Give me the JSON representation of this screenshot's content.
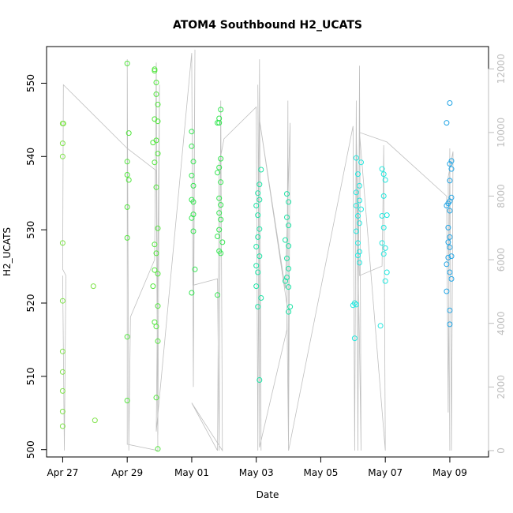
{
  "chart_data": {
    "type": "scatter",
    "title": "ATOM4 Southbound H2_UCATS",
    "xlabel": "Date",
    "ylabel": "H2_UCATS",
    "x_ticks": [
      "Apr 27",
      "Apr 29",
      "May 01",
      "May 03",
      "May 05",
      "May 07",
      "May 09"
    ],
    "x_tick_days": [
      0,
      2,
      4,
      6,
      8,
      10,
      12
    ],
    "xlim_days": [
      -0.5,
      13.2
    ],
    "ylim": [
      499,
      555
    ],
    "y_ticks": [
      500,
      510,
      520,
      530,
      540,
      550
    ],
    "y2_ticks": [
      0,
      2000,
      4000,
      6000,
      8000,
      10000,
      12000
    ],
    "y2lim": [
      -200,
      12700
    ],
    "secondary_series_color": "#bfbfbf",
    "series": [
      {
        "color": "#7fe34a",
        "points": [
          [
            0.0,
            544.5
          ],
          [
            0.02,
            544.5
          ],
          [
            0.0,
            541.8
          ],
          [
            0.0,
            540.0
          ],
          [
            0.0,
            528.2
          ],
          [
            0.0,
            520.3
          ],
          [
            0.0,
            513.4
          ],
          [
            0.0,
            510.6
          ],
          [
            0.0,
            508.0
          ],
          [
            0.0,
            505.2
          ],
          [
            0.0,
            503.2
          ],
          [
            0.95,
            522.3
          ],
          [
            1.0,
            504.0
          ]
        ]
      },
      {
        "color": "#52e63d",
        "points": [
          [
            2.0,
            552.7
          ],
          [
            2.05,
            543.2
          ],
          [
            2.0,
            539.3
          ],
          [
            2.0,
            537.5
          ],
          [
            2.05,
            536.8
          ],
          [
            2.0,
            533.1
          ],
          [
            2.0,
            528.9
          ],
          [
            2.0,
            515.4
          ],
          [
            2.0,
            506.7
          ],
          [
            2.85,
            551.7
          ],
          [
            2.85,
            551.9
          ],
          [
            2.9,
            550.1
          ],
          [
            2.9,
            548.5
          ],
          [
            2.95,
            547.1
          ],
          [
            2.85,
            545.1
          ],
          [
            2.95,
            544.8
          ],
          [
            2.9,
            542.2
          ],
          [
            2.8,
            541.9
          ],
          [
            2.95,
            540.4
          ],
          [
            2.85,
            539.2
          ],
          [
            2.9,
            535.8
          ],
          [
            2.95,
            530.2
          ],
          [
            2.85,
            528.0
          ],
          [
            2.9,
            526.8
          ],
          [
            2.85,
            524.5
          ],
          [
            2.95,
            524.0
          ],
          [
            2.8,
            522.3
          ],
          [
            2.95,
            519.6
          ],
          [
            2.85,
            517.4
          ],
          [
            2.9,
            516.8
          ],
          [
            2.95,
            514.8
          ],
          [
            2.9,
            507.1
          ],
          [
            2.95,
            500.1
          ]
        ]
      },
      {
        "color": "#33e650",
        "points": [
          [
            4.0,
            543.4
          ],
          [
            4.0,
            541.4
          ],
          [
            4.05,
            539.3
          ],
          [
            4.0,
            537.4
          ],
          [
            4.05,
            536.0
          ],
          [
            4.0,
            534.1
          ],
          [
            4.05,
            533.8
          ],
          [
            4.0,
            531.6
          ],
          [
            4.05,
            532.1
          ],
          [
            4.05,
            529.8
          ],
          [
            4.1,
            524.6
          ],
          [
            4.0,
            521.4
          ],
          [
            4.9,
            546.4
          ],
          [
            4.85,
            545.2
          ],
          [
            4.8,
            544.6
          ],
          [
            4.85,
            544.6
          ],
          [
            4.9,
            539.7
          ],
          [
            4.85,
            538.5
          ],
          [
            4.8,
            537.8
          ],
          [
            4.9,
            536.5
          ],
          [
            4.85,
            534.3
          ],
          [
            4.9,
            533.4
          ],
          [
            4.85,
            532.3
          ],
          [
            4.9,
            531.4
          ],
          [
            4.85,
            530.0
          ],
          [
            4.8,
            529.1
          ],
          [
            4.95,
            528.3
          ],
          [
            4.85,
            527.1
          ],
          [
            4.9,
            526.8
          ],
          [
            4.8,
            521.1
          ]
        ]
      },
      {
        "color": "#1fe3a6",
        "points": [
          [
            6.15,
            538.2
          ],
          [
            6.1,
            536.2
          ],
          [
            6.05,
            535.0
          ],
          [
            6.1,
            534.1
          ],
          [
            6.0,
            533.3
          ],
          [
            6.05,
            532.0
          ],
          [
            6.1,
            530.1
          ],
          [
            6.05,
            529.0
          ],
          [
            6.0,
            527.7
          ],
          [
            6.1,
            526.4
          ],
          [
            6.0,
            525.1
          ],
          [
            6.05,
            524.2
          ],
          [
            6.0,
            522.3
          ],
          [
            6.15,
            520.7
          ],
          [
            6.05,
            519.5
          ],
          [
            6.1,
            509.5
          ],
          [
            6.95,
            534.9
          ],
          [
            7.0,
            533.8
          ],
          [
            6.95,
            531.7
          ],
          [
            7.0,
            530.6
          ],
          [
            6.9,
            528.6
          ],
          [
            7.0,
            527.8
          ],
          [
            6.95,
            526.1
          ],
          [
            7.0,
            524.7
          ],
          [
            6.95,
            523.5
          ],
          [
            6.9,
            523.0
          ],
          [
            7.0,
            522.2
          ],
          [
            7.05,
            519.5
          ],
          [
            7.0,
            518.8
          ]
        ]
      },
      {
        "color": "#22e8df",
        "points": [
          [
            9.1,
            539.8
          ],
          [
            9.25,
            539.2
          ],
          [
            9.15,
            537.6
          ],
          [
            9.2,
            536.0
          ],
          [
            9.1,
            535.1
          ],
          [
            9.2,
            534.0
          ],
          [
            9.1,
            533.3
          ],
          [
            9.25,
            532.8
          ],
          [
            9.15,
            531.9
          ],
          [
            9.2,
            530.9
          ],
          [
            9.1,
            529.8
          ],
          [
            9.15,
            528.2
          ],
          [
            9.2,
            527.0
          ],
          [
            9.15,
            526.5
          ],
          [
            9.2,
            525.5
          ],
          [
            9.05,
            520.0
          ],
          [
            9.1,
            519.8
          ],
          [
            9.0,
            519.7
          ],
          [
            9.05,
            515.2
          ],
          [
            9.9,
            538.3
          ],
          [
            9.95,
            537.6
          ],
          [
            10.0,
            536.8
          ],
          [
            9.95,
            534.6
          ],
          [
            9.9,
            531.9
          ],
          [
            10.05,
            532.0
          ],
          [
            9.95,
            530.3
          ],
          [
            9.9,
            528.2
          ],
          [
            10.0,
            527.5
          ],
          [
            9.95,
            526.7
          ],
          [
            10.05,
            524.2
          ],
          [
            10.0,
            523.0
          ],
          [
            9.85,
            516.9
          ]
        ]
      },
      {
        "color": "#24a6e6",
        "points": [
          [
            11.9,
            544.6
          ],
          [
            12.0,
            547.3
          ],
          [
            12.05,
            539.4
          ],
          [
            12.0,
            539.0
          ],
          [
            12.05,
            538.3
          ],
          [
            12.0,
            536.7
          ],
          [
            12.05,
            534.4
          ],
          [
            12.0,
            533.9
          ],
          [
            11.95,
            533.6
          ],
          [
            11.9,
            533.3
          ],
          [
            12.0,
            532.6
          ],
          [
            11.95,
            530.3
          ],
          [
            12.0,
            529.0
          ],
          [
            11.95,
            528.3
          ],
          [
            12.0,
            527.6
          ],
          [
            11.95,
            526.2
          ],
          [
            12.05,
            526.4
          ],
          [
            11.9,
            525.3
          ],
          [
            12.0,
            524.2
          ],
          [
            12.05,
            523.3
          ],
          [
            11.9,
            521.6
          ],
          [
            12.0,
            519.0
          ],
          [
            12.0,
            517.1
          ]
        ]
      }
    ],
    "secondary_line": [
      [
        0.0,
        5500
      ],
      [
        0.05,
        0
      ],
      [
        0.1,
        5500
      ],
      [
        0.0,
        5700
      ],
      [
        0.02,
        11500
      ],
      [
        2.0,
        9500
      ],
      [
        2.9,
        8800
      ],
      [
        2.95,
        0
      ],
      [
        2.0,
        200
      ],
      [
        2.0,
        12300
      ],
      [
        2.05,
        0
      ],
      [
        2.1,
        4200
      ],
      [
        2.85,
        6000
      ],
      [
        2.9,
        12200
      ],
      [
        2.95,
        700
      ],
      [
        2.9,
        12000
      ],
      [
        2.95,
        500
      ],
      [
        3.0,
        11500
      ],
      [
        2.9,
        600
      ],
      [
        4.0,
        12500
      ],
      [
        4.05,
        2000
      ],
      [
        4.1,
        12600
      ],
      [
        4.05,
        5200
      ],
      [
        4.8,
        5400
      ],
      [
        4.85,
        0
      ],
      [
        4.9,
        11000
      ],
      [
        4.95,
        0
      ],
      [
        4.0,
        1500
      ],
      [
        4.8,
        0
      ],
      [
        4.85,
        9000
      ],
      [
        5.0,
        9800
      ],
      [
        6.0,
        10800
      ],
      [
        6.05,
        0
      ],
      [
        6.1,
        12300
      ],
      [
        6.15,
        0
      ],
      [
        6.05,
        11500
      ],
      [
        6.1,
        100
      ],
      [
        6.95,
        3800
      ],
      [
        6.98,
        11000
      ],
      [
        7.0,
        300
      ],
      [
        7.05,
        10300
      ],
      [
        6.9,
        5100
      ],
      [
        6.1,
        10400
      ],
      [
        6.95,
        4600
      ],
      [
        7.0,
        0
      ],
      [
        9.0,
        10200
      ],
      [
        9.05,
        0
      ],
      [
        9.1,
        11000
      ],
      [
        9.15,
        0
      ],
      [
        9.2,
        12100
      ],
      [
        9.25,
        0
      ],
      [
        9.1,
        10000
      ],
      [
        9.2,
        5500
      ],
      [
        9.9,
        5800
      ],
      [
        9.95,
        9600
      ],
      [
        10.0,
        0
      ],
      [
        9.2,
        10000
      ],
      [
        10.05,
        9700
      ],
      [
        11.9,
        8000
      ],
      [
        11.95,
        1200
      ],
      [
        12.0,
        9500
      ],
      [
        12.05,
        0
      ],
      [
        12.1,
        9400
      ],
      [
        11.95,
        8600
      ],
      [
        12.0,
        0
      ]
    ]
  }
}
